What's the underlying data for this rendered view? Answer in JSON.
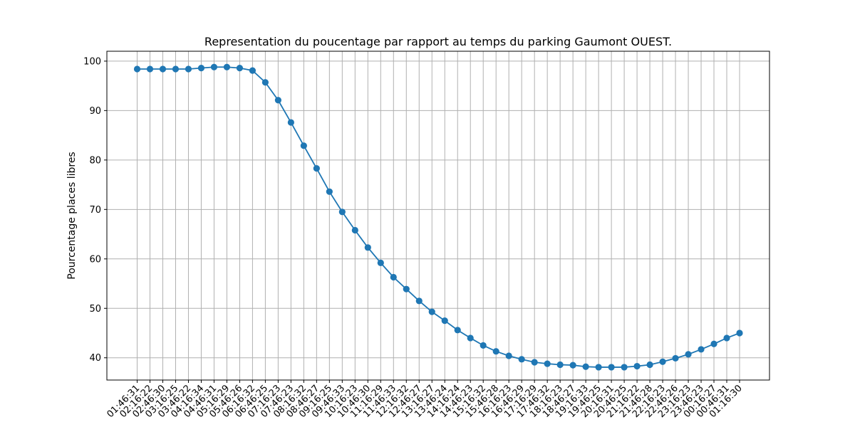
{
  "chart_data": {
    "type": "line",
    "title": "Representation du poucentage par rapport au temps du parking Gaumont OUEST.",
    "xlabel": "",
    "ylabel": "Pourcentage places libres",
    "ylim": [
      35.5,
      102
    ],
    "yticks": [
      40,
      50,
      60,
      70,
      80,
      90,
      100
    ],
    "grid": true,
    "color": "#1f77b4",
    "x": [
      "01:46:31",
      "02:16:22",
      "02:46:30",
      "03:16:25",
      "03:46:22",
      "04:16:34",
      "04:46:31",
      "05:16:29",
      "05:46:26",
      "06:16:32",
      "06:46:25",
      "07:16:23",
      "07:46:23",
      "08:16:32",
      "08:46:27",
      "09:16:25",
      "09:46:33",
      "10:16:23",
      "10:46:30",
      "11:16:29",
      "11:46:33",
      "12:16:32",
      "12:46:27",
      "13:16:27",
      "13:46:24",
      "14:16:24",
      "14:46:23",
      "15:16:32",
      "15:46:28",
      "16:16:23",
      "16:46:29",
      "17:16:29",
      "17:46:32",
      "18:16:23",
      "18:46:27",
      "19:16:33",
      "19:46:25",
      "20:16:31",
      "20:46:25",
      "21:16:22",
      "21:46:28",
      "22:16:23",
      "22:46:26",
      "23:16:23",
      "23:46:23",
      "00:16:27",
      "00:46:31",
      "01:16:30"
    ],
    "values": [
      98.4,
      98.4,
      98.4,
      98.4,
      98.4,
      98.6,
      98.8,
      98.8,
      98.6,
      98.1,
      95.7,
      92.1,
      87.6,
      82.9,
      78.3,
      73.6,
      69.5,
      65.8,
      62.3,
      59.2,
      56.3,
      53.9,
      51.5,
      49.3,
      47.5,
      45.6,
      44.0,
      42.5,
      41.3,
      40.4,
      39.7,
      39.1,
      38.8,
      38.6,
      38.5,
      38.2,
      38.1,
      38.1,
      38.1,
      38.3,
      38.6,
      39.2,
      39.9,
      40.7,
      41.7,
      42.8,
      44.0,
      45.0
    ]
  }
}
